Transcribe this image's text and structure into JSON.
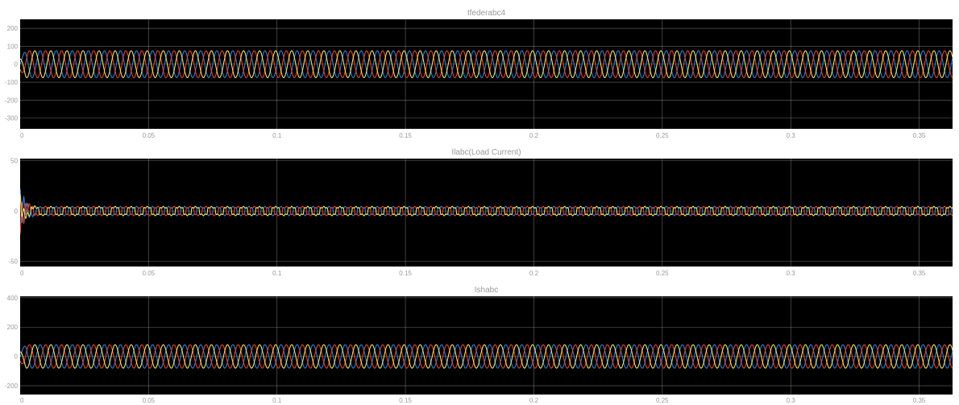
{
  "figure": {
    "background": "#ffffff",
    "axes_background": "#000000",
    "grid_color": "#bdbdbd",
    "text_color": "#9a9a9a"
  },
  "chart_data": [
    {
      "type": "line",
      "title": "Ifederabc4",
      "xlim": [
        0,
        0.363
      ],
      "ylim": [
        -360,
        250
      ],
      "xticks": [
        0,
        0.05,
        0.1,
        0.15,
        0.2,
        0.25,
        0.3,
        0.35
      ],
      "xtick_labels": [
        "0",
        "0.05",
        "0.1",
        "0.15",
        "0.2",
        "0.25",
        "0.3",
        "0.35"
      ],
      "yticks": [
        -300,
        -200,
        -100,
        0,
        100,
        200
      ],
      "ytick_labels": [
        "-300",
        "-200",
        "-100",
        "0",
        "100",
        "200"
      ],
      "grid": true,
      "frequency_hz": 160,
      "series": [
        {
          "phase_deg": 0,
          "amplitude": 75,
          "color": "#2f7fd6",
          "waveform": "sine",
          "startup": "ramp"
        },
        {
          "phase_deg": -120,
          "amplitude": 75,
          "color": "#e0452a",
          "waveform": "sine",
          "startup": "ramp"
        },
        {
          "phase_deg": 120,
          "amplitude": 75,
          "color": "#f0e070",
          "waveform": "sine",
          "startup": "ramp"
        }
      ]
    },
    {
      "type": "line",
      "title": "Ilabc(Load Current)",
      "xlim": [
        0,
        0.363
      ],
      "ylim": [
        -55,
        52
      ],
      "xticks": [
        0,
        0.05,
        0.1,
        0.15,
        0.2,
        0.25,
        0.3,
        0.35
      ],
      "xtick_labels": [
        "0",
        "0.05",
        "0.1",
        "0.15",
        "0.2",
        "0.25",
        "0.3",
        "0.35"
      ],
      "yticks": [
        -50,
        0,
        50
      ],
      "ytick_labels": [
        "-50",
        "0",
        "50"
      ],
      "grid": true,
      "frequency_hz": 160,
      "series": [
        {
          "phase_deg": 0,
          "amplitude": 4,
          "color": "#2f7fd6",
          "waveform": "quasi-square",
          "startup": "transient"
        },
        {
          "phase_deg": -120,
          "amplitude": 4,
          "color": "#e0452a",
          "waveform": "quasi-square",
          "startup": "transient"
        },
        {
          "phase_deg": 120,
          "amplitude": 4,
          "color": "#f0e070",
          "waveform": "quasi-square",
          "startup": "transient"
        }
      ]
    },
    {
      "type": "line",
      "title": "Ishabc",
      "xlim": [
        0,
        0.363
      ],
      "ylim": [
        -260,
        410
      ],
      "xticks": [
        0,
        0.05,
        0.1,
        0.15,
        0.2,
        0.25,
        0.3,
        0.35
      ],
      "xtick_labels": [
        "0",
        "0.05",
        "0.1",
        "0.15",
        "0.2",
        "0.25",
        "0.3",
        "0.35"
      ],
      "yticks": [
        -200,
        0,
        200,
        400
      ],
      "ytick_labels": [
        "-200",
        "0",
        "200",
        "400"
      ],
      "grid": true,
      "frequency_hz": 160,
      "series": [
        {
          "phase_deg": 0,
          "amplitude": 80,
          "color": "#2f7fd6",
          "waveform": "sine",
          "startup": "ramp"
        },
        {
          "phase_deg": -120,
          "amplitude": 80,
          "color": "#e0452a",
          "waveform": "sine",
          "startup": "ramp"
        },
        {
          "phase_deg": 120,
          "amplitude": 80,
          "color": "#f0e070",
          "waveform": "sine",
          "startup": "ramp"
        }
      ]
    }
  ]
}
